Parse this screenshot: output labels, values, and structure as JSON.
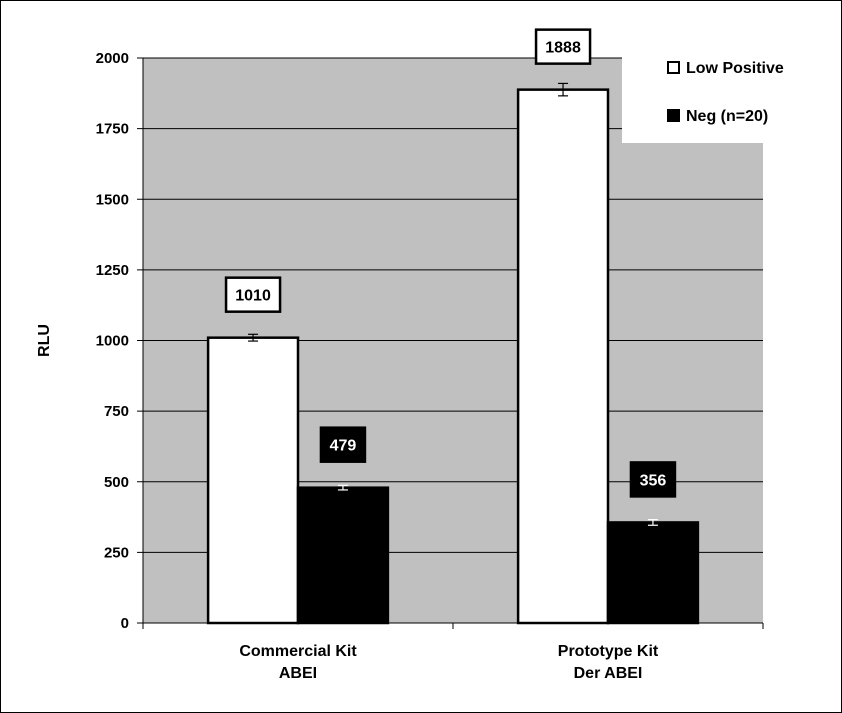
{
  "chart_data": {
    "type": "bar",
    "categories": [
      [
        "Commercial Kit",
        "ABEI"
      ],
      [
        "Prototype Kit",
        "Der ABEI"
      ]
    ],
    "series": [
      {
        "name": "Low Positive",
        "values": [
          1010,
          1888
        ],
        "errors": [
          12,
          22
        ],
        "color": "#ffffff"
      },
      {
        "name": "Neg (n=20)",
        "values": [
          479,
          356
        ],
        "errors": [
          8,
          10
        ],
        "color": "#000000"
      }
    ],
    "data_labels": [
      [
        "1010",
        "1888"
      ],
      [
        "479",
        "356"
      ]
    ],
    "ylabel": "RLU",
    "ylim": [
      0,
      2000
    ],
    "yticks": [
      0,
      250,
      500,
      750,
      1000,
      1250,
      1500,
      1750,
      2000
    ],
    "grid": true,
    "plot_background": "#c0c0c0",
    "legend_position": "top-right"
  }
}
